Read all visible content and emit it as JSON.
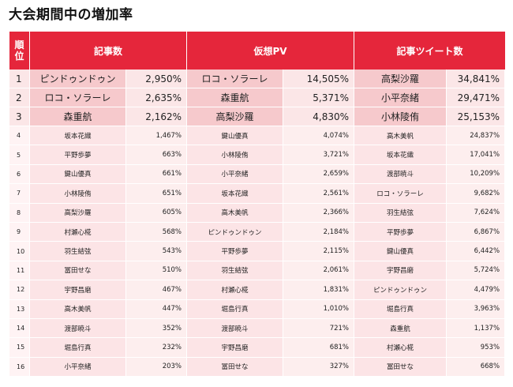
{
  "title": "大会期間中の増加率",
  "headers": {
    "rank_line1": "順",
    "rank_line2": "位",
    "articles": "記事数",
    "pv": "仮想PV",
    "tweets": "記事ツイート数"
  },
  "rows": [
    {
      "rank": "1",
      "a_name": "ピンドゥンドゥン",
      "a_val": "2,950%",
      "p_name": "ロコ・ソラーレ",
      "p_val": "14,505%",
      "t_name": "高梨沙羅",
      "t_val": "34,841%"
    },
    {
      "rank": "2",
      "a_name": "ロコ・ソラーレ",
      "a_val": "2,635%",
      "p_name": "森重航",
      "p_val": "5,371%",
      "t_name": "小平奈緒",
      "t_val": "29,471%"
    },
    {
      "rank": "3",
      "a_name": "森重航",
      "a_val": "2,162%",
      "p_name": "高梨沙羅",
      "p_val": "4,830%",
      "t_name": "小林陵侑",
      "t_val": "25,153%"
    },
    {
      "rank": "4",
      "a_name": "坂本花織",
      "a_val": "1,467%",
      "p_name": "鍵山優真",
      "p_val": "4,074%",
      "t_name": "高木美帆",
      "t_val": "24,837%"
    },
    {
      "rank": "5",
      "a_name": "平野歩夢",
      "a_val": "663%",
      "p_name": "小林陵侑",
      "p_val": "3,721%",
      "t_name": "坂本花織",
      "t_val": "17,041%"
    },
    {
      "rank": "6",
      "a_name": "鍵山優真",
      "a_val": "661%",
      "p_name": "小平奈緒",
      "p_val": "2,659%",
      "t_name": "渡部暁斗",
      "t_val": "10,209%"
    },
    {
      "rank": "7",
      "a_name": "小林陵侑",
      "a_val": "651%",
      "p_name": "坂本花織",
      "p_val": "2,561%",
      "t_name": "ロコ・ソラーレ",
      "t_val": "9,682%"
    },
    {
      "rank": "8",
      "a_name": "高梨沙羅",
      "a_val": "605%",
      "p_name": "高木美帆",
      "p_val": "2,366%",
      "t_name": "羽生結弦",
      "t_val": "7,624%"
    },
    {
      "rank": "9",
      "a_name": "村瀬心椛",
      "a_val": "568%",
      "p_name": "ピンドゥンドゥン",
      "p_val": "2,184%",
      "t_name": "平野歩夢",
      "t_val": "6,867%"
    },
    {
      "rank": "10",
      "a_name": "羽生結弦",
      "a_val": "543%",
      "p_name": "平野歩夢",
      "p_val": "2,115%",
      "t_name": "鍵山優真",
      "t_val": "6,442%"
    },
    {
      "rank": "11",
      "a_name": "冨田せな",
      "a_val": "510%",
      "p_name": "羽生結弦",
      "p_val": "2,061%",
      "t_name": "宇野昌磨",
      "t_val": "5,724%"
    },
    {
      "rank": "12",
      "a_name": "宇野昌磨",
      "a_val": "467%",
      "p_name": "村瀬心椛",
      "p_val": "1,831%",
      "t_name": "ピンドゥンドゥン",
      "t_val": "4,479%"
    },
    {
      "rank": "13",
      "a_name": "高木美帆",
      "a_val": "447%",
      "p_name": "堀島行真",
      "p_val": "1,010%",
      "t_name": "堀島行真",
      "t_val": "3,963%"
    },
    {
      "rank": "14",
      "a_name": "渡部暁斗",
      "a_val": "352%",
      "p_name": "渡部暁斗",
      "p_val": "721%",
      "t_name": "森重航",
      "t_val": "1,137%"
    },
    {
      "rank": "15",
      "a_name": "堀島行真",
      "a_val": "232%",
      "p_name": "宇野昌磨",
      "p_val": "681%",
      "t_name": "村瀬心椛",
      "t_val": "953%"
    },
    {
      "rank": "16",
      "a_name": "小平奈緒",
      "a_val": "203%",
      "p_name": "冨田せな",
      "p_val": "327%",
      "t_name": "冨田せな",
      "t_val": "668%"
    }
  ]
}
